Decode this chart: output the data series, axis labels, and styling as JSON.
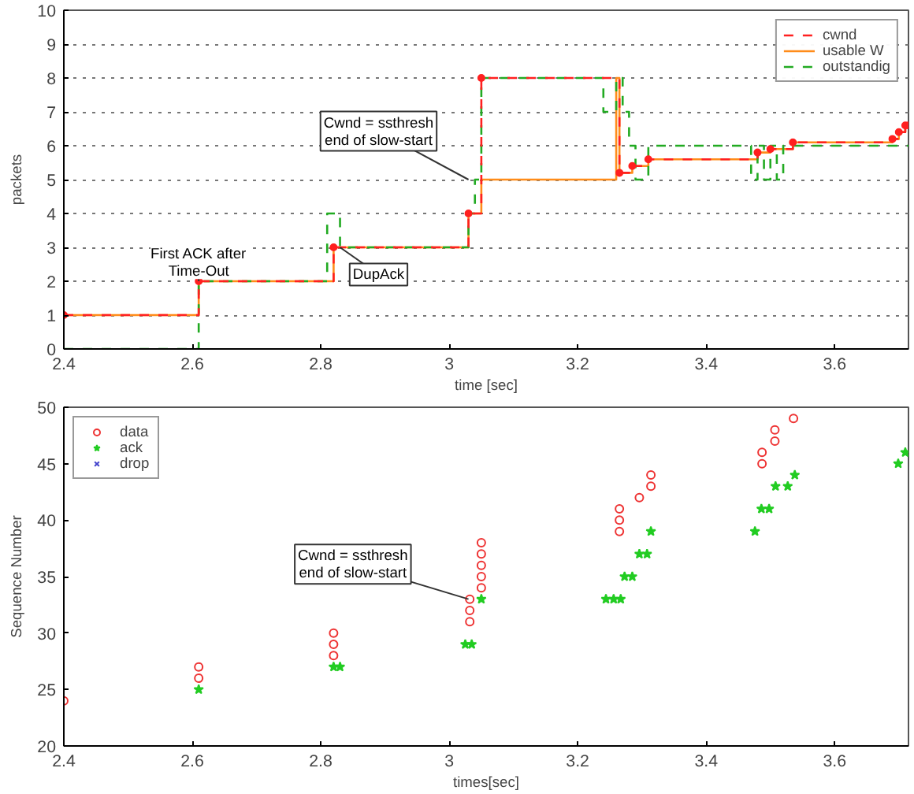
{
  "chart_data": [
    {
      "type": "step",
      "xlabel": "time [sec]",
      "ylabel": "packets",
      "xlim": [
        2.4,
        3.715
      ],
      "xticks": [
        2.4,
        2.6,
        2.8,
        3,
        3.2,
        3.4,
        3.6
      ],
      "ylim": [
        0,
        10
      ],
      "yticks": [
        0,
        1,
        2,
        3,
        4,
        5,
        6,
        7,
        8,
        9,
        10
      ],
      "grid": "y",
      "legend": "top right",
      "series": [
        {
          "name": "cwnd",
          "color": "#ff2020",
          "line_style": "dashed",
          "marker": "circle",
          "x": [
            2.4,
            2.61,
            2.82,
            3.03,
            3.05,
            3.265,
            3.285,
            3.31,
            3.48,
            3.5,
            3.535,
            3.69,
            3.7,
            3.71,
            3.715
          ],
          "values": [
            1,
            2,
            3,
            4,
            8,
            5.2,
            5.4,
            5.6,
            5.8,
            5.9,
            6.1,
            6.2,
            6.4,
            6.6,
            6.6
          ]
        },
        {
          "name": "usable W",
          "color": "#ff8c1a",
          "line_style": "solid",
          "x": [
            2.4,
            2.61,
            2.82,
            3.03,
            3.05,
            3.26,
            3.265,
            3.285,
            3.31,
            3.48,
            3.5,
            3.535,
            3.69,
            3.7,
            3.71,
            3.715
          ],
          "values": [
            1,
            2,
            3,
            4,
            5,
            8,
            5.2,
            5.4,
            5.6,
            5.8,
            5.9,
            6.1,
            6.2,
            6.4,
            6.6,
            6.6
          ]
        },
        {
          "name": "outstandig",
          "color": "#22aa22",
          "line_style": "dashed",
          "x": [
            2.4,
            2.61,
            2.81,
            2.83,
            3.03,
            3.04,
            3.05,
            3.24,
            3.26,
            3.27,
            3.28,
            3.29,
            3.31,
            3.47,
            3.48,
            3.49,
            3.5,
            3.51,
            3.52,
            3.535,
            3.715
          ],
          "values": [
            0,
            2,
            4,
            3,
            4,
            5,
            8,
            7,
            8,
            7,
            6,
            5,
            6,
            5,
            6,
            5,
            6,
            5,
            6,
            6,
            6
          ]
        }
      ],
      "annotations": [
        {
          "text": "First ACK after\nTime-Out",
          "x": 2.61,
          "y": 2
        },
        {
          "text": "Cwnd = ssthresh\nend of slow-start",
          "x": 3.03,
          "y": 5
        },
        {
          "text": "DupAck",
          "x": 2.83,
          "y": 3
        }
      ]
    },
    {
      "type": "scatter",
      "xlabel": "times[sec]",
      "ylabel": "Sequence Number",
      "xlim": [
        2.4,
        3.715
      ],
      "xticks": [
        2.4,
        2.6,
        2.8,
        3,
        3.2,
        3.4,
        3.6
      ],
      "ylim": [
        20,
        50
      ],
      "yticks": [
        20,
        25,
        30,
        35,
        40,
        45,
        50
      ],
      "legend": "top left",
      "series": [
        {
          "name": "data",
          "color": "#ee3333",
          "marker": "circle",
          "x": [
            2.4,
            2.61,
            2.61,
            2.82,
            2.82,
            2.82,
            3.032,
            3.032,
            3.032,
            3.05,
            3.05,
            3.05,
            3.05,
            3.05,
            3.265,
            3.265,
            3.265,
            3.296,
            3.314,
            3.314,
            3.487,
            3.487,
            3.507,
            3.507,
            3.536
          ],
          "values": [
            24,
            26,
            27,
            28,
            29,
            30,
            31,
            32,
            33,
            34,
            35,
            36,
            37,
            38,
            39,
            40,
            41,
            42,
            43,
            44,
            45,
            46,
            47,
            48,
            49
          ]
        },
        {
          "name": "ack",
          "color": "#22cc22",
          "marker": "star",
          "x": [
            2.61,
            2.82,
            2.83,
            3.025,
            3.035,
            3.05,
            3.244,
            3.256,
            3.267,
            3.273,
            3.285,
            3.296,
            3.308,
            3.314,
            3.476,
            3.486,
            3.498,
            3.508,
            3.527,
            3.538,
            3.699,
            3.71
          ],
          "values": [
            25,
            27,
            27,
            29,
            29,
            33,
            33,
            33,
            33,
            35,
            35,
            37,
            37,
            39,
            39,
            41,
            41,
            43,
            43,
            44,
            45,
            46
          ]
        },
        {
          "name": "drop",
          "color": "#4444cc",
          "marker": "cross"
        }
      ],
      "annotations": [
        {
          "text": "Cwnd = ssthresh\nend of slow-start",
          "x": 3.03,
          "y": 33
        }
      ]
    }
  ]
}
